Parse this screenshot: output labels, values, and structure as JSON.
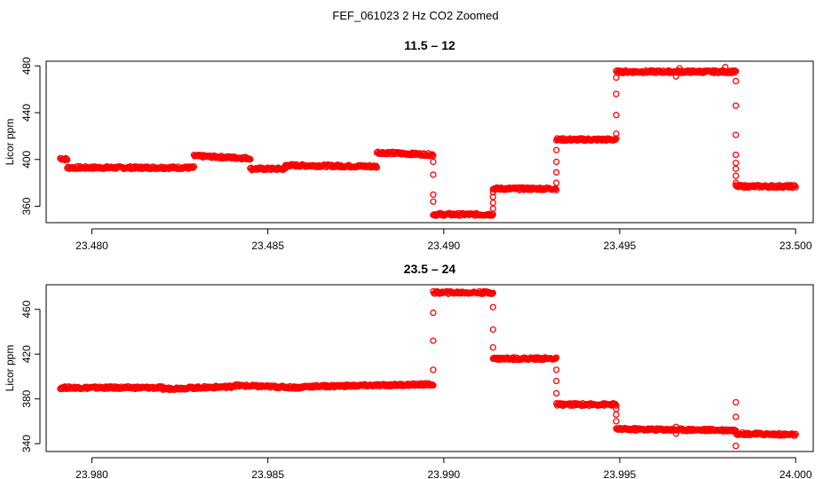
{
  "figure": {
    "suptitle": "FEF_061023  2 Hz CO2 Zoomed",
    "point_color": "#ff0000"
  },
  "chart_data": [
    {
      "type": "scatter",
      "title": "11.5 – 12",
      "xlabel": "",
      "ylabel": "Licor ppm",
      "xlim": [
        23.4787,
        23.5005
      ],
      "ylim": [
        346,
        484
      ],
      "xticks": [
        23.48,
        23.485,
        23.49,
        23.495,
        23.5
      ],
      "xtick_labels": [
        "23.480",
        "23.485",
        "23.490",
        "23.495",
        "23.500"
      ],
      "yticks": [
        360,
        400,
        440,
        480
      ],
      "ytick_labels": [
        "360",
        "400",
        "440",
        "480"
      ],
      "grid": false,
      "marker": "open-circle",
      "segments": [
        {
          "x": [
            23.4791,
            23.4793
          ],
          "y": [
            401,
            400
          ]
        },
        {
          "x": [
            23.4793,
            23.4829
          ],
          "y": [
            393,
            393
          ]
        },
        {
          "x": [
            23.4829,
            23.4845
          ],
          "y": [
            403,
            401
          ]
        },
        {
          "x": [
            23.4845,
            23.4855
          ],
          "y": [
            392,
            392
          ]
        },
        {
          "x": [
            23.4855,
            23.4881
          ],
          "y": [
            395,
            394
          ]
        },
        {
          "x": [
            23.4881,
            23.4897
          ],
          "y": [
            406,
            404
          ]
        },
        {
          "x": [
            23.4897,
            23.4914
          ],
          "y": [
            353,
            353
          ]
        },
        {
          "x": [
            23.4914,
            23.4932
          ],
          "y": [
            375,
            375
          ]
        },
        {
          "x": [
            23.4932,
            23.4949
          ],
          "y": [
            417,
            417
          ]
        },
        {
          "x": [
            23.4949,
            23.4983
          ],
          "y": [
            475,
            475
          ]
        },
        {
          "x": [
            23.4983,
            23.5
          ],
          "y": [
            377,
            377
          ]
        }
      ],
      "transitions": [
        {
          "x": 23.4897,
          "y": [
            398,
            387,
            370,
            364
          ]
        },
        {
          "x": 23.4914,
          "y": [
            358,
            363,
            368,
            372
          ]
        },
        {
          "x": 23.4932,
          "y": [
            380,
            389,
            398,
            408
          ]
        },
        {
          "x": 23.4949,
          "y": [
            422,
            438,
            456,
            470
          ]
        },
        {
          "x": 23.4983,
          "y": [
            467,
            446,
            421,
            404,
            397,
            392,
            386,
            380
          ]
        }
      ],
      "extra_points": {
        "x": [
          23.4966,
          23.4967,
          23.498
        ],
        "y": [
          471,
          478,
          479
        ]
      }
    },
    {
      "type": "scatter",
      "title": "23.5 – 24",
      "xlabel": "",
      "ylabel": "Licor ppm",
      "xlim": [
        23.9787,
        24.0005
      ],
      "ylim": [
        333,
        482
      ],
      "xticks": [
        23.98,
        23.985,
        23.99,
        23.995,
        24.0
      ],
      "xtick_labels": [
        "23.980",
        "23.985",
        "23.990",
        "23.995",
        "24.000"
      ],
      "yticks": [
        340,
        380,
        420,
        460
      ],
      "ytick_labels": [
        "340",
        "380",
        "420",
        "460"
      ],
      "grid": false,
      "marker": "open-circle",
      "segments": [
        {
          "x": [
            23.9791,
            23.982
          ],
          "y": [
            390,
            390
          ]
        },
        {
          "x": [
            23.982,
            23.984
          ],
          "y": [
            389,
            391
          ]
        },
        {
          "x": [
            23.984,
            23.986
          ],
          "y": [
            392,
            390
          ]
        },
        {
          "x": [
            23.986,
            23.9897
          ],
          "y": [
            391,
            393
          ]
        },
        {
          "x": [
            23.9897,
            23.9914
          ],
          "y": [
            475,
            475
          ]
        },
        {
          "x": [
            23.9914,
            23.9932
          ],
          "y": [
            416,
            416
          ]
        },
        {
          "x": [
            23.9932,
            23.9949
          ],
          "y": [
            375,
            375
          ]
        },
        {
          "x": [
            23.9949,
            23.9983
          ],
          "y": [
            353,
            352
          ]
        },
        {
          "x": [
            23.9983,
            24.0
          ],
          "y": [
            349,
            348
          ]
        }
      ],
      "transitions": [
        {
          "x": 23.9897,
          "y": [
            406,
            432,
            457
          ]
        },
        {
          "x": 23.9914,
          "y": [
            462,
            442,
            426
          ]
        },
        {
          "x": 23.9932,
          "y": [
            406,
            396,
            385
          ]
        },
        {
          "x": 23.9949,
          "y": [
            371,
            366,
            360
          ]
        },
        {
          "x": 23.9983,
          "y": [
            377,
            364,
            338
          ]
        }
      ],
      "extra_points": {
        "x": [
          23.9966,
          23.9966
        ],
        "y": [
          349,
          355
        ]
      }
    }
  ]
}
